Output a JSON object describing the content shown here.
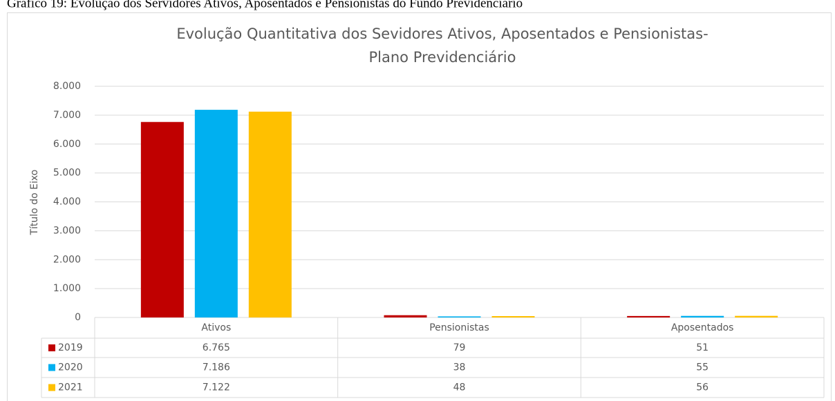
{
  "caption": "Gráfico 19: Evolução dos Servidores Ativos, Aposentados e Pensionistas do Fundo Previdenciário",
  "chart_data": {
    "type": "bar",
    "title": [
      "Evolução Quantitativa dos Sevidores Ativos, Aposentados e Pensionistas-",
      "Plano Previdenciário"
    ],
    "y_label": "Título do Eixo",
    "categories": [
      "Ativos",
      "Pensionistas",
      "Aposentados"
    ],
    "series": [
      {
        "name": "2019",
        "color": "#c00000",
        "values": [
          6765,
          79,
          51
        ],
        "value_labels": [
          "6.765",
          "79",
          "51"
        ]
      },
      {
        "name": "2020",
        "color": "#00b0f0",
        "values": [
          7186,
          38,
          55
        ],
        "value_labels": [
          "7.186",
          "38",
          "55"
        ]
      },
      {
        "name": "2021",
        "color": "#ffc000",
        "values": [
          7122,
          48,
          56
        ],
        "value_labels": [
          "7.122",
          "48",
          "56"
        ]
      }
    ],
    "ylim": [
      0,
      8000
    ],
    "yticks": [
      0,
      {
        "value": 1000,
        "label": "1.000"
      },
      {
        "value": 2000,
        "label": "2.000"
      },
      {
        "value": 3000,
        "label": "3.000"
      },
      {
        "value": 4000,
        "label": "4.000"
      },
      {
        "value": 5000,
        "label": "5.000"
      },
      {
        "value": 6000,
        "label": "6.000"
      },
      {
        "value": 7000,
        "label": "7.000"
      },
      {
        "value": 8000,
        "label": "8.000"
      }
    ],
    "grid": true
  }
}
